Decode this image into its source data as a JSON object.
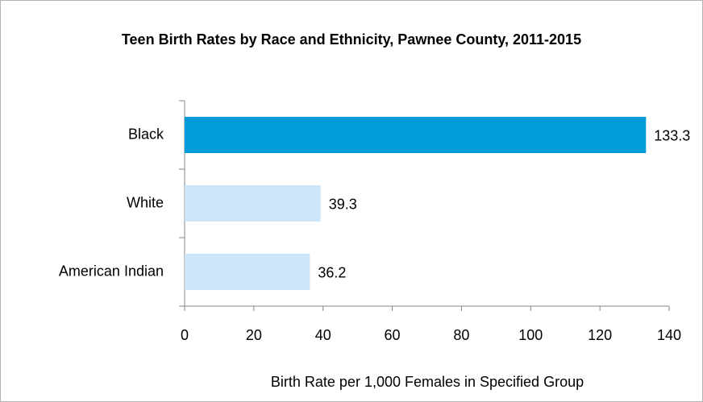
{
  "chart_data": {
    "type": "bar",
    "orientation": "horizontal",
    "title": "Teen Birth Rates by Race and Ethnicity, Pawnee County, 2011-2015",
    "categories": [
      "Black",
      "White",
      "American Indian"
    ],
    "values": [
      133.3,
      39.3,
      36.2
    ],
    "colors": [
      "#009bd8",
      "#cce5f9",
      "#cce5f9"
    ],
    "xlabel": "Birth Rate per 1,000 Females in Specified Group",
    "xlim": [
      0,
      140
    ],
    "xticks": [
      0,
      20,
      40,
      60,
      80,
      100,
      120,
      140
    ],
    "grid": false
  }
}
